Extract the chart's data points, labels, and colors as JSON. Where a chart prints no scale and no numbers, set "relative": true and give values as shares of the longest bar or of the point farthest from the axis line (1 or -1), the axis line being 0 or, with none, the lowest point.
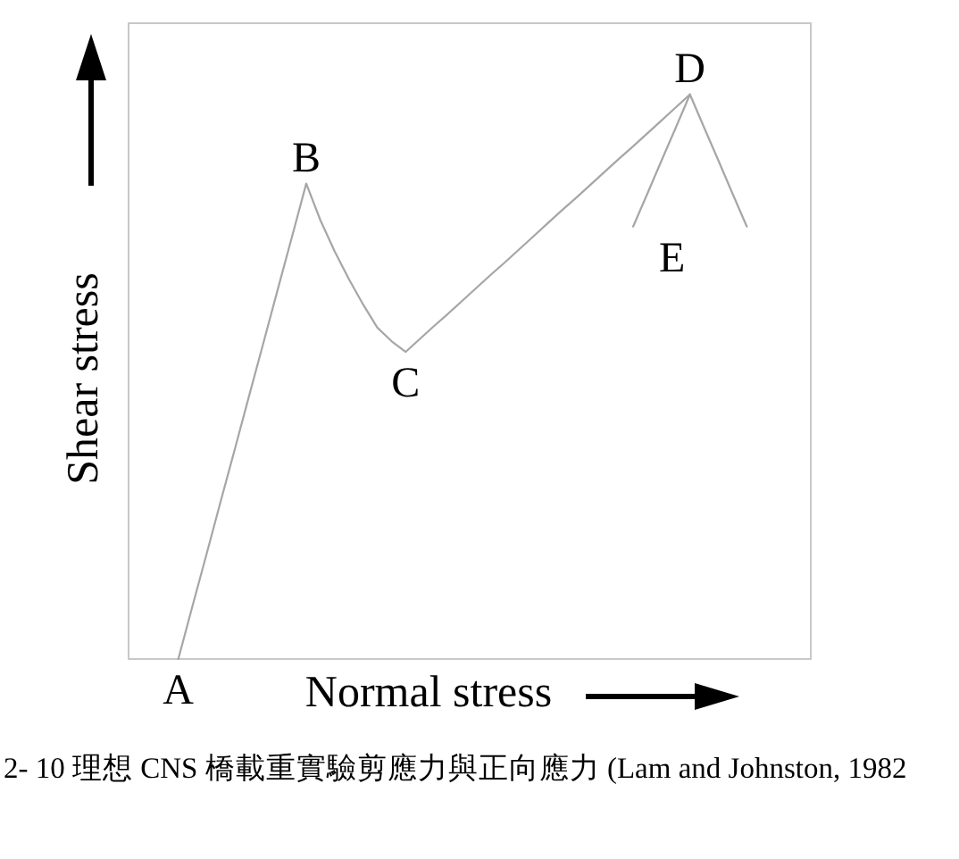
{
  "chart_data": {
    "type": "line",
    "relative": true,
    "xlabel": "Normal stress",
    "ylabel": "Shear stress",
    "categories": [
      null,
      null,
      null,
      null,
      null,
      null,
      null,
      null,
      null,
      null,
      null,
      null,
      null,
      null,
      null,
      null,
      null,
      null,
      null,
      null,
      null,
      null,
      null,
      null,
      null,
      null,
      null,
      null,
      null,
      null,
      null,
      null,
      null,
      null,
      null,
      null,
      null,
      null,
      null,
      null,
      null,
      null,
      null,
      null,
      null,
      null,
      null,
      null
    ],
    "series": [
      {
        "color": "#a6a6a6",
        "values": [
          null,
          null,
          null,
          0,
          0.094,
          0.187,
          0.281,
          0.374,
          0.468,
          0.561,
          0.655,
          0.748,
          0.842,
          0.777,
          0.722,
          0.673,
          0.628,
          0.587,
          0.563,
          0.544,
          0.567,
          0.59,
          0.612,
          0.635,
          0.658,
          0.681,
          0.703,
          0.726,
          0.749,
          0.772,
          0.795,
          0.817,
          0.84,
          0.863,
          0.886,
          0.908,
          0.931,
          0.954,
          0.977,
          1,
          null,
          null,
          null,
          null,
          null,
          null,
          null,
          null
        ]
      },
      {
        "color": "#a6a6a6",
        "values": [
          null,
          null,
          null,
          null,
          null,
          null,
          null,
          null,
          null,
          null,
          null,
          null,
          null,
          null,
          null,
          null,
          null,
          null,
          null,
          null,
          null,
          null,
          null,
          null,
          null,
          null,
          null,
          null,
          null,
          null,
          null,
          null,
          null,
          null,
          null,
          0.766,
          0.824,
          0.883,
          0.941,
          1,
          0.941,
          0.883,
          0.824,
          0.766,
          null,
          null,
          null,
          null
        ]
      }
    ],
    "annotations": [
      {
        "text": "A",
        "y": 0
      },
      {
        "text": "B",
        "y": 0.842
      },
      {
        "text": "C",
        "y": 0.544
      },
      {
        "text": "D",
        "y": 1
      },
      "E",
      "2- 10 理想 CNS 橋載重實驗剪應力與正向應力 (Lam and Johnston, 1982"
    ]
  }
}
